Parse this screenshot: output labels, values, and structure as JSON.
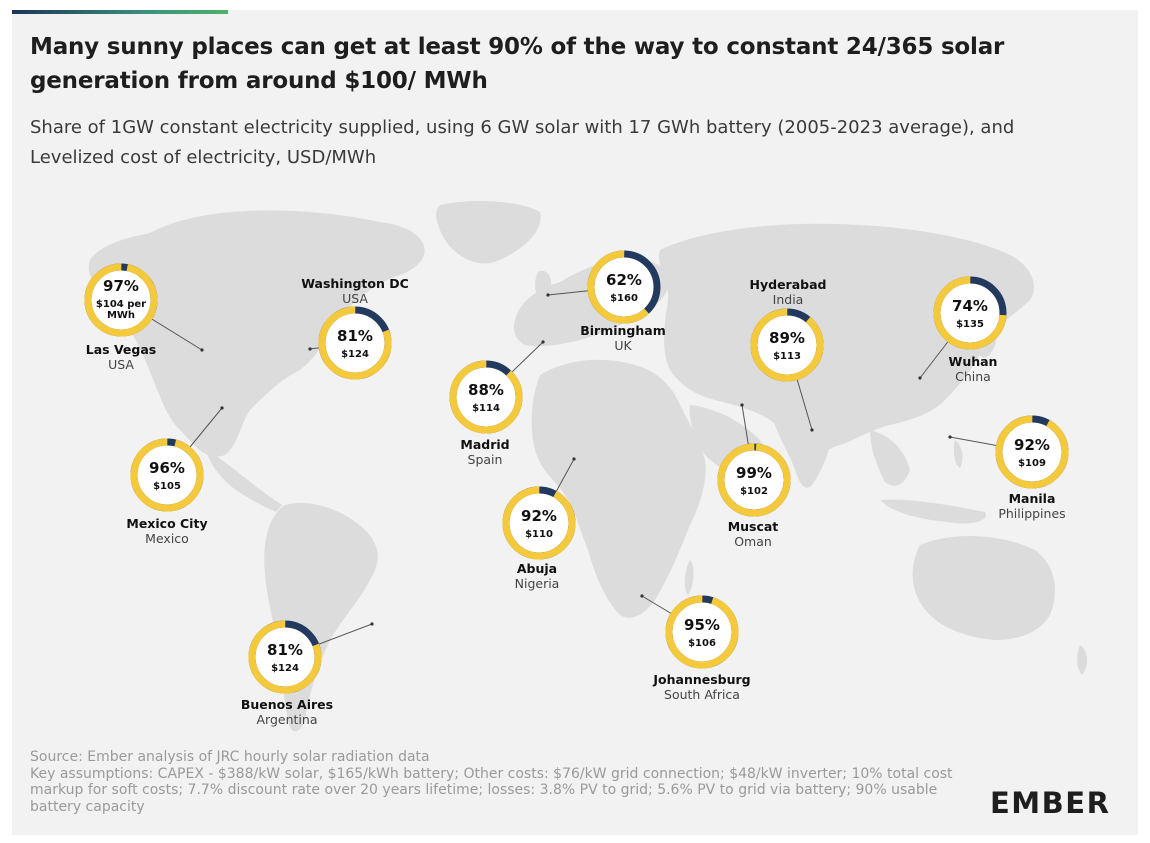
{
  "title": "Many sunny places can get at least 90% of the way to constant 24/365 solar generation from around $100/ MWh",
  "subtitle": "Share of 1GW constant electricity supplied, using 6 GW solar with 17 GWh battery (2005-2023 average), and Levelized cost of electricity, USD/MWh",
  "footer": {
    "source": "Source: Ember analysis of JRC hourly solar radiation data",
    "assumptions": "Key assumptions: CAPEX - $388/kW solar, $165/kWh battery; Other costs: $76/kW grid connection; $48/kW inverter; 10% total cost markup for soft costs; 7.7% discount rate over 20 years lifetime; losses: 3.8% PV to grid; 5.6% PV to grid via battery; 90% usable battery capacity"
  },
  "logo": "EMBER",
  "colors": {
    "solar": "#f5c93c",
    "gap": "#23395d",
    "land": "#dcdcdc",
    "background": "#f2f2f2"
  },
  "cities": [
    {
      "name": "Las Vegas",
      "country": "USA",
      "share": 97,
      "share_label": "97%",
      "cost_label": "$104 per MWh"
    },
    {
      "name": "Washington DC",
      "country": "USA",
      "share": 81,
      "share_label": "81%",
      "cost_label": "$124"
    },
    {
      "name": "Mexico City",
      "country": "Mexico",
      "share": 96,
      "share_label": "96%",
      "cost_label": "$105"
    },
    {
      "name": "Buenos Aires",
      "country": "Argentina",
      "share": 81,
      "share_label": "81%",
      "cost_label": "$124"
    },
    {
      "name": "Birmingham",
      "country": "UK",
      "share": 62,
      "share_label": "62%",
      "cost_label": "$160"
    },
    {
      "name": "Madrid",
      "country": "Spain",
      "share": 88,
      "share_label": "88%",
      "cost_label": "$114"
    },
    {
      "name": "Abuja",
      "country": "Nigeria",
      "share": 92,
      "share_label": "92%",
      "cost_label": "$110"
    },
    {
      "name": "Johannesburg",
      "country": "South Africa",
      "share": 95,
      "share_label": "95%",
      "cost_label": "$106"
    },
    {
      "name": "Hyderabad",
      "country": "India",
      "share": 89,
      "share_label": "89%",
      "cost_label": "$113"
    },
    {
      "name": "Muscat",
      "country": "Oman",
      "share": 99,
      "share_label": "99%",
      "cost_label": "$102"
    },
    {
      "name": "Wuhan",
      "country": "China",
      "share": 74,
      "share_label": "74%",
      "cost_label": "$135"
    },
    {
      "name": "Manila",
      "country": "Philippines",
      "share": 92,
      "share_label": "92%",
      "cost_label": "$109"
    }
  ]
}
